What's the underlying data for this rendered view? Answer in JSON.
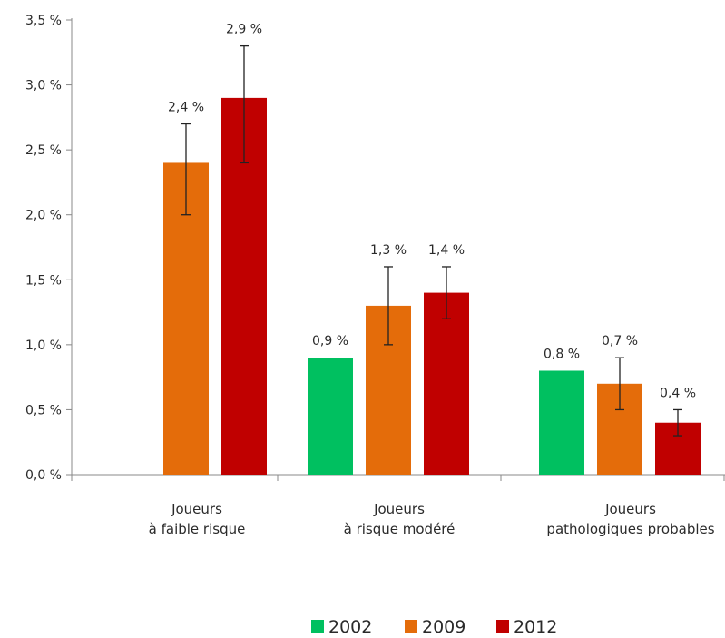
{
  "chart_data": {
    "type": "bar",
    "title": "",
    "xlabel": "",
    "ylabel": "",
    "ylim": [
      0,
      3.5
    ],
    "yticks": [
      0,
      0.5,
      1.0,
      1.5,
      2.0,
      2.5,
      3.0,
      3.5
    ],
    "ytick_labels": [
      "0,0 %",
      "0,5 %",
      "1,0 %",
      "1,5 %",
      "2,0 %",
      "2,5 %",
      "3,0 %",
      "3,5 %"
    ],
    "grid": false,
    "legend_position": "bottom",
    "categories": [
      [
        "Joueurs",
        "à faible risque"
      ],
      [
        "Joueurs",
        "à risque modéré"
      ],
      [
        "Joueurs",
        "pathologiques probables"
      ]
    ],
    "series": [
      {
        "name": "2002",
        "color": "#00c060",
        "values": [
          null,
          0.9,
          0.8
        ],
        "labels": [
          "",
          "0,9 %",
          "0,8 %"
        ],
        "error_low": [
          null,
          null,
          null
        ],
        "error_high": [
          null,
          null,
          null
        ]
      },
      {
        "name": "2009",
        "color": "#e46c0a",
        "values": [
          2.4,
          1.3,
          0.7
        ],
        "labels": [
          "2,4 %",
          "1,3 %",
          "0,7 %"
        ],
        "error_low": [
          2.0,
          1.0,
          0.5
        ],
        "error_high": [
          2.7,
          1.6,
          0.9
        ]
      },
      {
        "name": "2012",
        "color": "#c00000",
        "values": [
          2.9,
          1.4,
          0.4
        ],
        "labels": [
          "2,9 %",
          "1,4 %",
          "0,4 %"
        ],
        "error_low": [
          2.4,
          1.2,
          0.3
        ],
        "error_high": [
          3.3,
          1.6,
          0.5
        ]
      }
    ]
  }
}
